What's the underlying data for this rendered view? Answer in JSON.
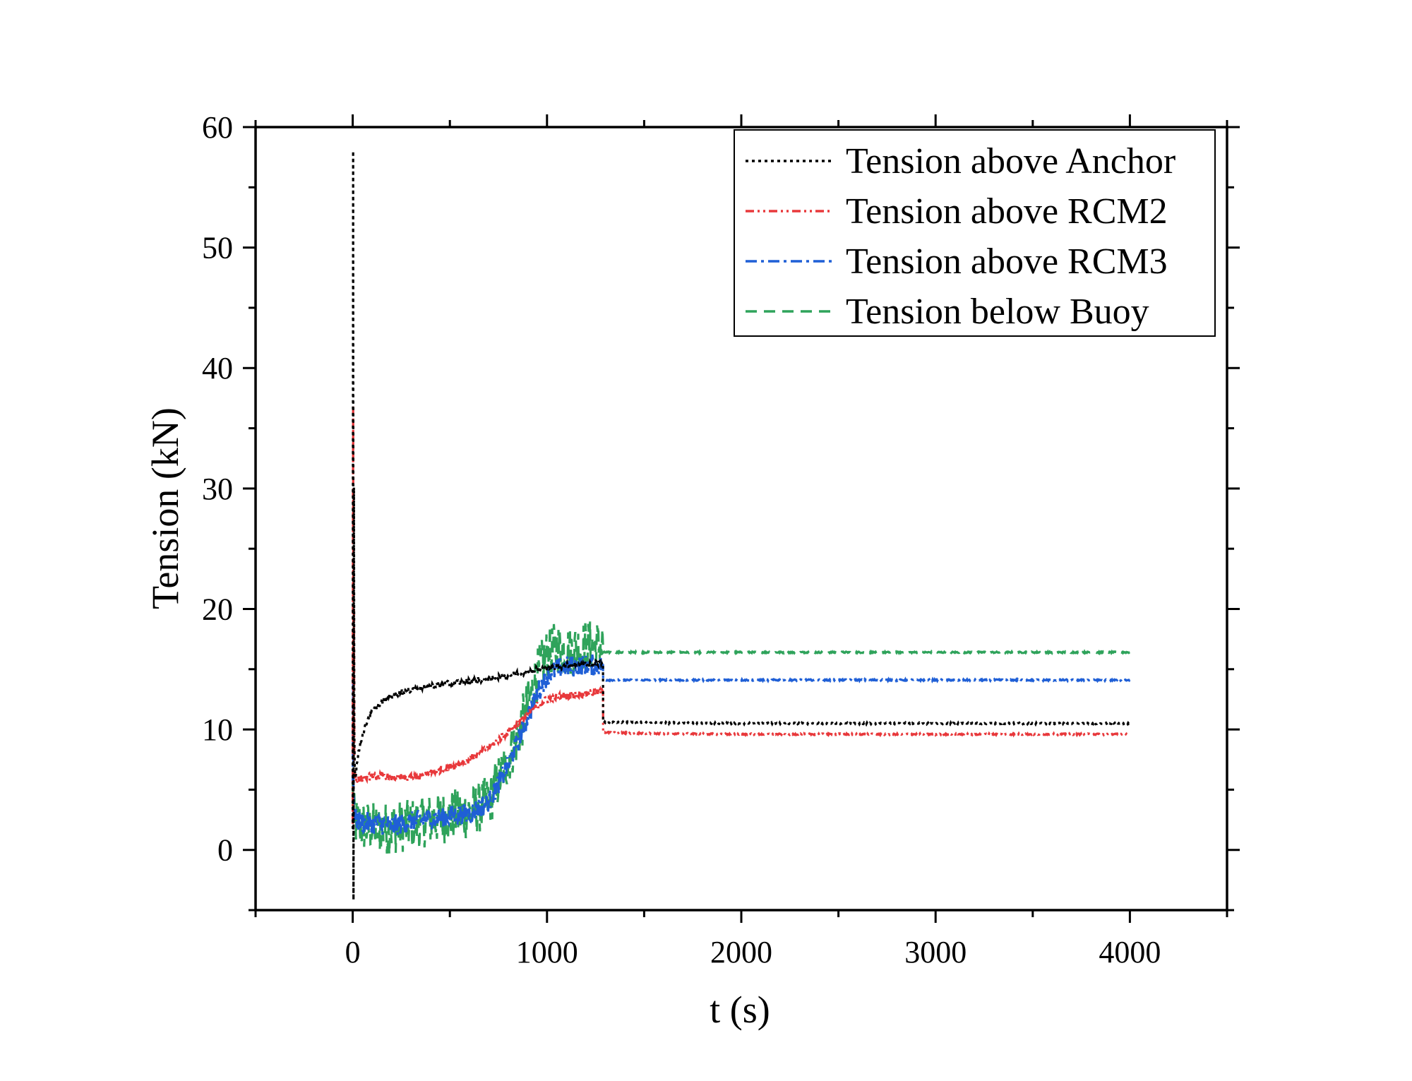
{
  "chart_data": {
    "type": "line",
    "title": "",
    "xlabel": "t (s)",
    "ylabel": "Tension (kN)",
    "xlim": [
      -500,
      4500
    ],
    "ylim": [
      -5,
      60
    ],
    "xticks": [
      0,
      1000,
      2000,
      3000,
      4000
    ],
    "yticks": [
      0,
      10,
      20,
      30,
      40,
      50,
      60
    ],
    "xtick_labels": [
      "0",
      "1000",
      "2000",
      "3000",
      "4000"
    ],
    "ytick_labels": [
      "0",
      "10",
      "20",
      "30",
      "40",
      "50",
      "60"
    ],
    "grid": false,
    "legend_position": "top-right",
    "series": [
      {
        "name": "Tension above Anchor",
        "color": "#000000",
        "dash": "dotted",
        "noise": 0.25,
        "x": [
          0,
          2,
          4,
          6,
          8,
          10,
          15,
          20,
          30,
          40,
          60,
          80,
          100,
          150,
          200,
          250,
          300,
          400,
          500,
          600,
          700,
          800,
          900,
          950,
          1000,
          1100,
          1200,
          1288,
          1289,
          1300,
          1400,
          1600,
          2000,
          2500,
          3000,
          3500,
          4000
        ],
        "y": [
          2,
          58,
          -4,
          30,
          10,
          7,
          6,
          7,
          8,
          9,
          10,
          11,
          11.5,
          12.3,
          12.8,
          13.1,
          13.3,
          13.6,
          13.8,
          14.0,
          14.2,
          14.5,
          14.8,
          15.0,
          15.1,
          15.3,
          15.4,
          15.5,
          10.6,
          10.6,
          10.6,
          10.55,
          10.5,
          10.5,
          10.5,
          10.5,
          10.5
        ]
      },
      {
        "name": "Tension above RCM2",
        "color": "#e8383b",
        "dash": "dash-dot-dot",
        "noise": 0.3,
        "x": [
          0,
          2,
          4,
          6,
          8,
          10,
          15,
          20,
          40,
          60,
          100,
          150,
          200,
          300,
          350,
          400,
          500,
          600,
          700,
          800,
          850,
          900,
          950,
          1000,
          1050,
          1100,
          1200,
          1288,
          1289,
          1300,
          1400,
          1600,
          2000,
          2500,
          3000,
          3500,
          4000
        ],
        "y": [
          2,
          37,
          10,
          20,
          8,
          6.5,
          6,
          5.8,
          5.9,
          6.0,
          6.1,
          6.1,
          6.0,
          6.0,
          6.1,
          6.4,
          6.9,
          7.5,
          8.5,
          9.8,
          10.5,
          11.2,
          12.0,
          12.5,
          12.7,
          12.8,
          13.0,
          13.2,
          9.8,
          9.75,
          9.7,
          9.65,
          9.6,
          9.6,
          9.6,
          9.6,
          9.6
        ]
      },
      {
        "name": "Tension above RCM3",
        "color": "#1f5fd6",
        "dash": "dash-dot",
        "noise": 0.9,
        "x": [
          0,
          2,
          4,
          6,
          8,
          10,
          20,
          50,
          100,
          200,
          300,
          400,
          500,
          600,
          700,
          800,
          850,
          900,
          950,
          1000,
          1050,
          1100,
          1200,
          1288,
          1289,
          1300,
          1400,
          1600,
          2000,
          2500,
          3000,
          3500,
          4000
        ],
        "y": [
          6,
          14,
          3,
          5,
          3,
          2.5,
          2.5,
          2.3,
          2.2,
          2.0,
          2.3,
          2.6,
          2.8,
          3.0,
          4.0,
          7.0,
          9.0,
          11.0,
          13.0,
          14.5,
          15.0,
          15.2,
          15.3,
          15.4,
          14.1,
          14.1,
          14.1,
          14.1,
          14.1,
          14.1,
          14.1,
          14.1,
          14.1
        ]
      },
      {
        "name": "Tension below Buoy",
        "color": "#2fa35b",
        "dash": "dashed",
        "noise": 2.2,
        "x": [
          0,
          5,
          10,
          20,
          50,
          100,
          200,
          300,
          400,
          500,
          600,
          700,
          800,
          850,
          900,
          950,
          1000,
          1050,
          1100,
          1200,
          1288,
          1289,
          1300,
          1400,
          1600,
          2000,
          2500,
          3000,
          3500,
          4000
        ],
        "y": [
          5,
          3,
          2.5,
          2.2,
          2.0,
          1.8,
          1.8,
          2.1,
          2.5,
          2.8,
          3.1,
          4.0,
          7.5,
          9.5,
          12.0,
          14.5,
          16.2,
          16.8,
          16.5,
          16.9,
          17.0,
          16.4,
          16.4,
          16.4,
          16.4,
          16.4,
          16.4,
          16.4,
          16.4,
          16.4
        ]
      }
    ]
  }
}
